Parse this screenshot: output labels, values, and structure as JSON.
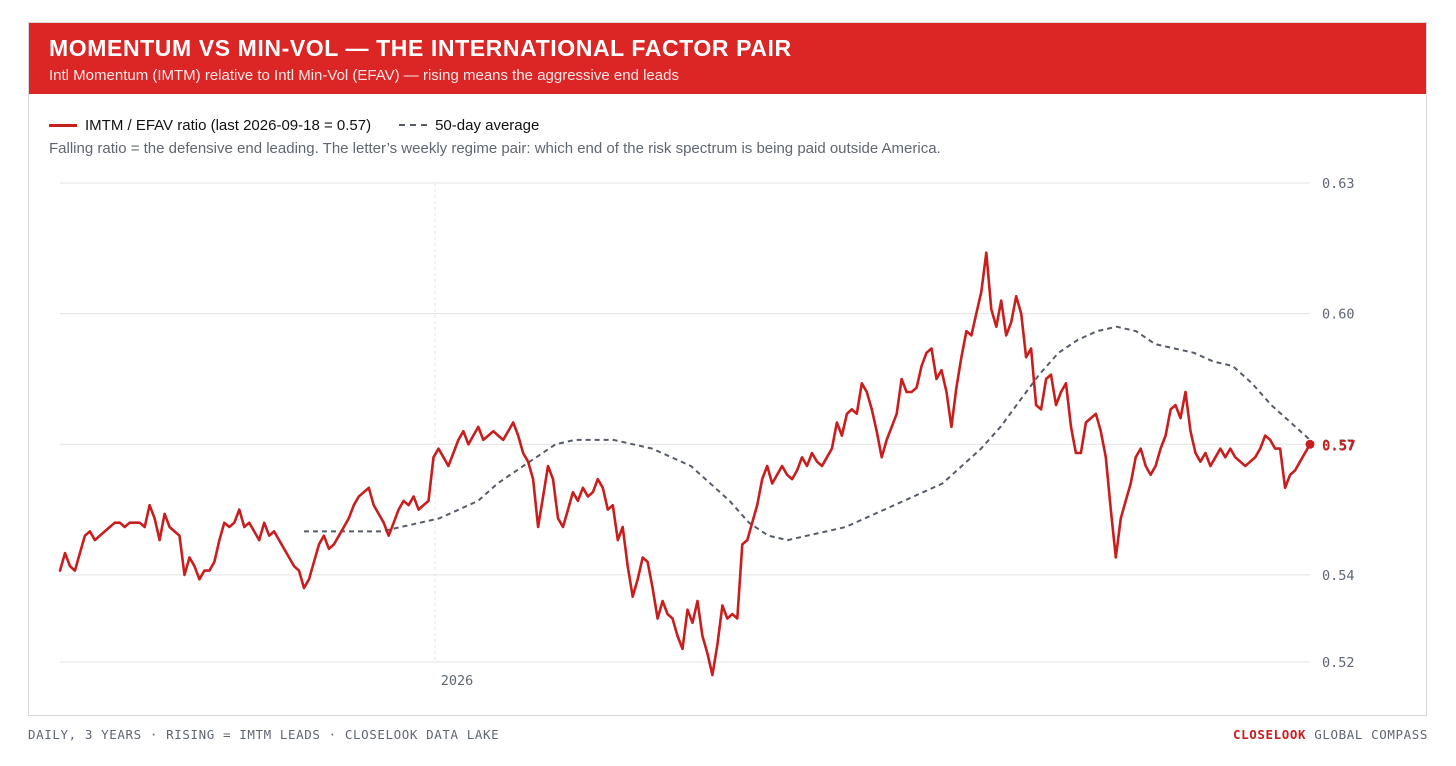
{
  "header": {
    "title": "MOMENTUM VS MIN-VOL — THE INTERNATIONAL FACTOR PAIR",
    "subtitle": "Intl Momentum (IMTM) relative to Intl Min-Vol (EFAV) — rising means the aggressive end leads"
  },
  "legend": {
    "ratio_label": "IMTM / EFAV ratio (last 2026-09-18 = 0.57)",
    "avg_label": "50-day average"
  },
  "note": "Falling ratio = the defensive end leading. The letter’s weekly regime pair: which end of the risk spectrum is being paid outside America.",
  "footer": {
    "left": "DAILY, 3 YEARS · RISING = IMTM LEADS · CLOSELOOK DATA LAKE",
    "brand": "CLOSELOOK",
    "right": "GLOBAL COMPASS"
  },
  "colors": {
    "banner": "#dc2626",
    "ratio_line": "#c81e1e",
    "avg_line": "#555c68",
    "grid": "#e3e3e3",
    "tick_text": "#5f6673"
  },
  "chart_data": {
    "type": "line",
    "ylim": [
      0.52,
      0.63
    ],
    "y_ticks": [
      0.52,
      0.54,
      0.57,
      0.6,
      0.63
    ],
    "y_tick_labels": [
      "0.52",
      "0.54",
      "0.57",
      "0.60",
      "0.63"
    ],
    "x_marker": {
      "label": "2026",
      "position": 0.3
    },
    "last_value_label": "0.57",
    "grid": "horizontal",
    "legend_position": "top-left",
    "series": [
      {
        "name": "IMTM / EFAV ratio",
        "style": "solid",
        "values": [
          0.541,
          0.545,
          0.542,
          0.541,
          0.545,
          0.549,
          0.55,
          0.548,
          0.549,
          0.55,
          0.551,
          0.552,
          0.552,
          0.551,
          0.552,
          0.552,
          0.552,
          0.551,
          0.556,
          0.553,
          0.548,
          0.554,
          0.551,
          0.55,
          0.549,
          0.54,
          0.544,
          0.542,
          0.539,
          0.541,
          0.541,
          0.543,
          0.548,
          0.552,
          0.551,
          0.552,
          0.555,
          0.551,
          0.552,
          0.55,
          0.548,
          0.552,
          0.549,
          0.55,
          0.548,
          0.546,
          0.544,
          0.542,
          0.541,
          0.537,
          0.539,
          0.543,
          0.547,
          0.549,
          0.546,
          0.547,
          0.549,
          0.551,
          0.553,
          0.556,
          0.558,
          0.559,
          0.56,
          0.556,
          0.554,
          0.552,
          0.549,
          0.552,
          0.555,
          0.557,
          0.556,
          0.558,
          0.555,
          0.556,
          0.557,
          0.567,
          0.569,
          0.567,
          0.565,
          0.568,
          0.571,
          0.573,
          0.57,
          0.572,
          0.574,
          0.571,
          0.572,
          0.573,
          0.572,
          0.571,
          0.573,
          0.575,
          0.572,
          0.568,
          0.566,
          0.562,
          0.551,
          0.558,
          0.565,
          0.562,
          0.553,
          0.551,
          0.555,
          0.559,
          0.557,
          0.56,
          0.558,
          0.559,
          0.562,
          0.56,
          0.555,
          0.556,
          0.548,
          0.551,
          0.542,
          0.535,
          0.539,
          0.544,
          0.543,
          0.537,
          0.53,
          0.534,
          0.531,
          0.53,
          0.526,
          0.523,
          0.532,
          0.529,
          0.534,
          0.526,
          0.522,
          0.517,
          0.524,
          0.533,
          0.53,
          0.531,
          0.53,
          0.547,
          0.548,
          0.552,
          0.556,
          0.562,
          0.565,
          0.561,
          0.563,
          0.565,
          0.563,
          0.562,
          0.564,
          0.567,
          0.565,
          0.568,
          0.566,
          0.565,
          0.567,
          0.569,
          0.575,
          0.572,
          0.577,
          0.578,
          0.577,
          0.584,
          0.582,
          0.578,
          0.573,
          0.567,
          0.571,
          0.574,
          0.577,
          0.585,
          0.582,
          0.582,
          0.583,
          0.588,
          0.591,
          0.592,
          0.585,
          0.587,
          0.582,
          0.574,
          0.583,
          0.59,
          0.596,
          0.595,
          0.6,
          0.605,
          0.614,
          0.601,
          0.597,
          0.603,
          0.595,
          0.598,
          0.604,
          0.6,
          0.59,
          0.592,
          0.579,
          0.578,
          0.585,
          0.586,
          0.579,
          0.582,
          0.584,
          0.574,
          0.568,
          0.568,
          0.575,
          0.576,
          0.577,
          0.573,
          0.567,
          0.555,
          0.544,
          0.553,
          0.557,
          0.561,
          0.567,
          0.569,
          0.565,
          0.563,
          0.565,
          0.569,
          0.572,
          0.578,
          0.579,
          0.576,
          0.582,
          0.573,
          0.568,
          0.566,
          0.568,
          0.565,
          0.567,
          0.569,
          0.567,
          0.569,
          0.567,
          0.566,
          0.565,
          0.566,
          0.567,
          0.569,
          0.572,
          0.571,
          0.569,
          0.569,
          0.56,
          0.563,
          0.564,
          0.566,
          0.568,
          0.57
        ]
      },
      {
        "name": "50-day average",
        "style": "dashed",
        "start_index": 49,
        "values": [
          0.55,
          0.55,
          0.55,
          0.55,
          0.55,
          0.551,
          0.552,
          0.553,
          0.555,
          0.557,
          0.561,
          0.564,
          0.567,
          0.57,
          0.571,
          0.571,
          0.571,
          0.57,
          0.569,
          0.567,
          0.565,
          0.561,
          0.557,
          0.552,
          0.549,
          0.548,
          0.549,
          0.55,
          0.551,
          0.553,
          0.555,
          0.557,
          0.559,
          0.561,
          0.565,
          0.569,
          0.574,
          0.58,
          0.586,
          0.591,
          0.594,
          0.596,
          0.597,
          0.596,
          0.593,
          0.592,
          0.591,
          0.589,
          0.588,
          0.584,
          0.579,
          0.575,
          0.571
        ]
      }
    ]
  }
}
